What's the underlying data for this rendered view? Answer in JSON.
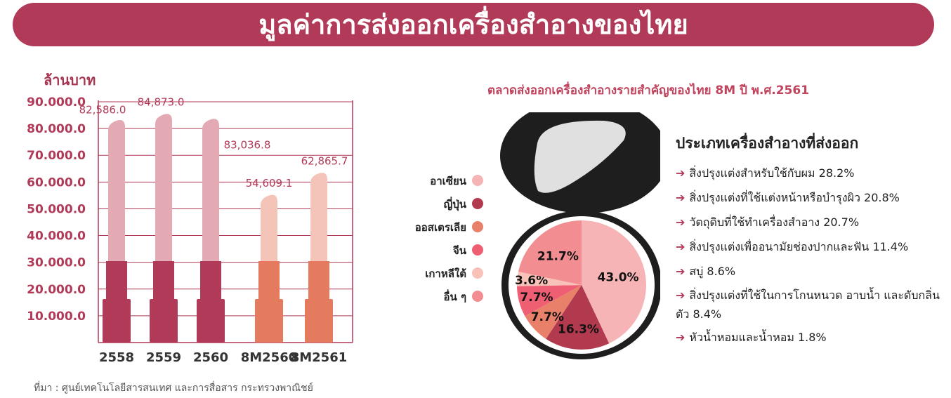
{
  "header": {
    "title": "มูลค่าการส่งออกเครื่องสำอางของไทย"
  },
  "source": "ที่มา : ศูนย์เทคโนโลยีสารสนเทศ และการสื่อสาร กระทรวงพาณิชย์",
  "chart_data": [
    {
      "type": "bar",
      "ylabel": "ล้านบาท",
      "ylim": [
        0,
        90000
      ],
      "yticks": [
        "10.000.0",
        "20.000.0",
        "30.000.0",
        "40.000.0",
        "50.000.0",
        "60.000.0",
        "70.000.0",
        "80.000.0",
        "90.000.0"
      ],
      "categories": [
        "2558",
        "2559",
        "2560",
        "8M2560",
        "8M2561"
      ],
      "values": [
        82586.0,
        84873.0,
        83036.8,
        54609.1,
        62865.7
      ],
      "value_labels": [
        "82,586.0",
        "84,873.0",
        "83,036.8",
        "54,609.1",
        "62,865.7"
      ],
      "colors": {
        "annual_top": "#e4aab4",
        "annual_base": "#b13a58",
        "partial_top": "#f5c4b8",
        "partial_base": "#e47a5e"
      }
    },
    {
      "type": "pie",
      "title": "ตลาดส่งออกเครื่องสำอางรายสำคัญของไทย 8M ปี พ.ศ.2561",
      "legend": [
        {
          "name": "อาเซียน",
          "color": "#f7b4b6"
        },
        {
          "name": "ญี่ปุ่น",
          "color": "#b13a4e"
        },
        {
          "name": "ออสเตรเลีย",
          "color": "#e8806a"
        },
        {
          "name": "จีน",
          "color": "#ef5f74"
        },
        {
          "name": "เกาหลีใต้",
          "color": "#f8c2b8"
        },
        {
          "name": "อื่น ๆ",
          "color": "#f28e92"
        }
      ],
      "slices": [
        {
          "name": "อาเซียน",
          "value": 43.0,
          "label": "43.0%",
          "color": "#f7b4b6"
        },
        {
          "name": "ญี่ปุ่น",
          "value": 16.3,
          "label": "16.3%",
          "color": "#b13a4e"
        },
        {
          "name": "ออสเตรเลีย",
          "value": 7.7,
          "label": "7.7%",
          "color": "#e8806a"
        },
        {
          "name": "จีน",
          "value": 7.7,
          "label": "7.7%",
          "color": "#ef5f74"
        },
        {
          "name": "เกาหลีใต้",
          "value": 3.6,
          "label": "3.6%",
          "color": "#f8c2b8"
        },
        {
          "name": "อื่น ๆ",
          "value": 21.7,
          "label": "21.7%",
          "color": "#f28e92"
        }
      ]
    }
  ],
  "types": {
    "title": "ประเภทเครื่องสำอางที่ส่งออก",
    "items": [
      "สิ่งปรุงแต่งสำหรับใช้กับผม 28.2%",
      "สิ่งปรุงแต่งที่ใช้แต่งหน้าหรือบำรุงผิว 20.8%",
      "วัตถุดิบที่ใช้ทำเครื่องสำอาง 20.7%",
      "สิ่งปรุงแต่งเพื่ออนามัยช่องปากและฟัน 11.4%",
      "สบู่ 8.6%",
      "สิ่งปรุงแต่งที่ใช้ในการโกนหนวด อาบน้ำ และดับกลิ่นตัว 8.4%",
      "หัวน้ำหอมและน้ำหอม 1.8%"
    ]
  }
}
